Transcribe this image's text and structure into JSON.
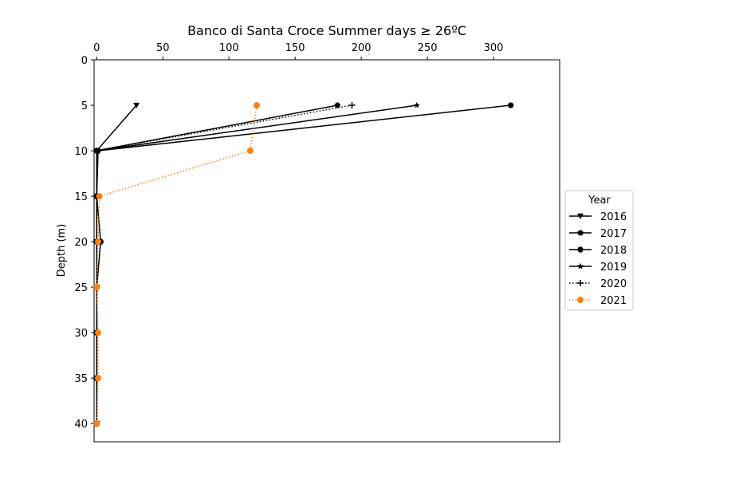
{
  "chart_data": {
    "type": "line",
    "title": "Banco di Santa Croce Summer days ≥ 26ºC",
    "xlabel": "",
    "ylabel": "Depth (m)",
    "x_axis_position": "top",
    "y_axis_inverted": true,
    "xlim": [
      -2,
      350
    ],
    "ylim": [
      0,
      42
    ],
    "xticks": [
      0,
      50,
      100,
      150,
      200,
      250,
      300
    ],
    "yticks": [
      0,
      5,
      10,
      15,
      20,
      25,
      30,
      35,
      40
    ],
    "grid": false,
    "legend": {
      "title": "Year",
      "placement": "right"
    },
    "series": [
      {
        "name": "2016",
        "color": "#000000",
        "linestyle": "solid",
        "marker": "triangle-down",
        "points": [
          [
            30,
            5
          ],
          [
            0,
            10
          ],
          [
            0,
            15
          ],
          [
            0,
            20
          ],
          [
            0,
            25
          ],
          [
            0,
            30
          ],
          [
            0,
            35
          ],
          [
            0,
            40
          ]
        ]
      },
      {
        "name": "2017",
        "color": "#000000",
        "linestyle": "solid",
        "marker": "pentagon",
        "points": [
          [
            182,
            5
          ],
          [
            0,
            10
          ],
          [
            0,
            15
          ],
          [
            0,
            20
          ],
          [
            0,
            25
          ],
          [
            0,
            30
          ],
          [
            0,
            35
          ],
          [
            0,
            40
          ]
        ]
      },
      {
        "name": "2018",
        "color": "#000000",
        "linestyle": "solid",
        "marker": "hexagon",
        "points": [
          [
            313,
            5
          ],
          [
            1,
            10
          ],
          [
            0,
            15
          ],
          [
            3,
            20
          ],
          [
            0,
            25
          ],
          [
            0,
            30
          ],
          [
            0,
            35
          ],
          [
            0,
            40
          ]
        ]
      },
      {
        "name": "2019",
        "color": "#000000",
        "linestyle": "solid",
        "marker": "star",
        "points": [
          [
            242,
            5
          ],
          [
            0,
            10
          ],
          [
            0,
            15
          ],
          [
            0,
            20
          ],
          [
            0,
            25
          ],
          [
            0,
            30
          ],
          [
            0,
            35
          ],
          [
            0,
            40
          ]
        ]
      },
      {
        "name": "2020",
        "color": "#000000",
        "linestyle": "dotted",
        "marker": "plus",
        "points": [
          [
            193,
            5
          ],
          [
            0,
            10
          ],
          [
            0,
            15
          ],
          [
            0,
            20
          ],
          [
            0,
            25
          ],
          [
            0,
            30
          ],
          [
            0,
            35
          ],
          [
            0,
            40
          ]
        ]
      },
      {
        "name": "2021",
        "color": "#ff7f0e",
        "linestyle": "dotted",
        "marker": "circle",
        "points": [
          [
            121,
            5
          ],
          [
            116,
            10
          ],
          [
            2,
            15
          ],
          [
            1,
            20
          ],
          [
            0,
            25
          ],
          [
            1,
            30
          ],
          [
            1,
            35
          ],
          [
            0,
            40
          ]
        ]
      }
    ]
  }
}
